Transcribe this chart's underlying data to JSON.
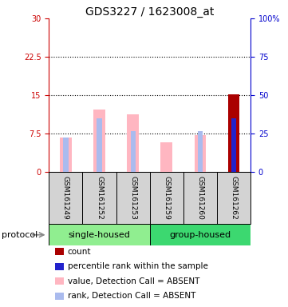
{
  "title": "GDS3227 / 1623008_at",
  "samples": [
    "GSM161249",
    "GSM161252",
    "GSM161253",
    "GSM161259",
    "GSM161260",
    "GSM161262"
  ],
  "groups": [
    "single-housed",
    "single-housed",
    "single-housed",
    "group-housed",
    "group-housed",
    "group-housed"
  ],
  "group_colors": {
    "single-housed": "#90EE90",
    "group-housed": "#3CD870"
  },
  "value_bars": [
    6.8,
    12.2,
    11.2,
    5.8,
    7.2,
    15.2
  ],
  "rank_bars_left_scale": [
    6.8,
    10.5,
    8.0,
    null,
    8.0,
    10.5
  ],
  "value_bar_color_absent": "#FFB6C1",
  "value_bar_color_present": "#AA0000",
  "rank_bar_color_absent": "#AABBEE",
  "rank_bar_color_present": "#2222CC",
  "is_present": [
    false,
    false,
    false,
    false,
    false,
    true
  ],
  "ylim_left": [
    0,
    30
  ],
  "ylim_right": [
    0,
    100
  ],
  "yticks_left": [
    0,
    7.5,
    15,
    22.5,
    30
  ],
  "yticks_right": [
    0,
    25,
    50,
    75,
    100
  ],
  "ytick_labels_left": [
    "0",
    "7.5",
    "15",
    "22.5",
    "30"
  ],
  "ytick_labels_right": [
    "0",
    "25",
    "50",
    "75",
    "100%"
  ],
  "hlines": [
    7.5,
    15,
    22.5
  ],
  "left_axis_color": "#CC0000",
  "right_axis_color": "#0000CC",
  "bg_color": "#FFFFFF",
  "sample_box_color": "#D3D3D3",
  "legend_items": [
    {
      "color": "#AA0000",
      "label": "count"
    },
    {
      "color": "#2222CC",
      "label": "percentile rank within the sample"
    },
    {
      "color": "#FFB6C1",
      "label": "value, Detection Call = ABSENT"
    },
    {
      "color": "#AABBEE",
      "label": "rank, Detection Call = ABSENT"
    }
  ],
  "title_fontsize": 10,
  "tick_fontsize": 7,
  "sample_fontsize": 6.5,
  "group_fontsize": 8,
  "legend_fontsize": 7.5,
  "protocol_fontsize": 8
}
